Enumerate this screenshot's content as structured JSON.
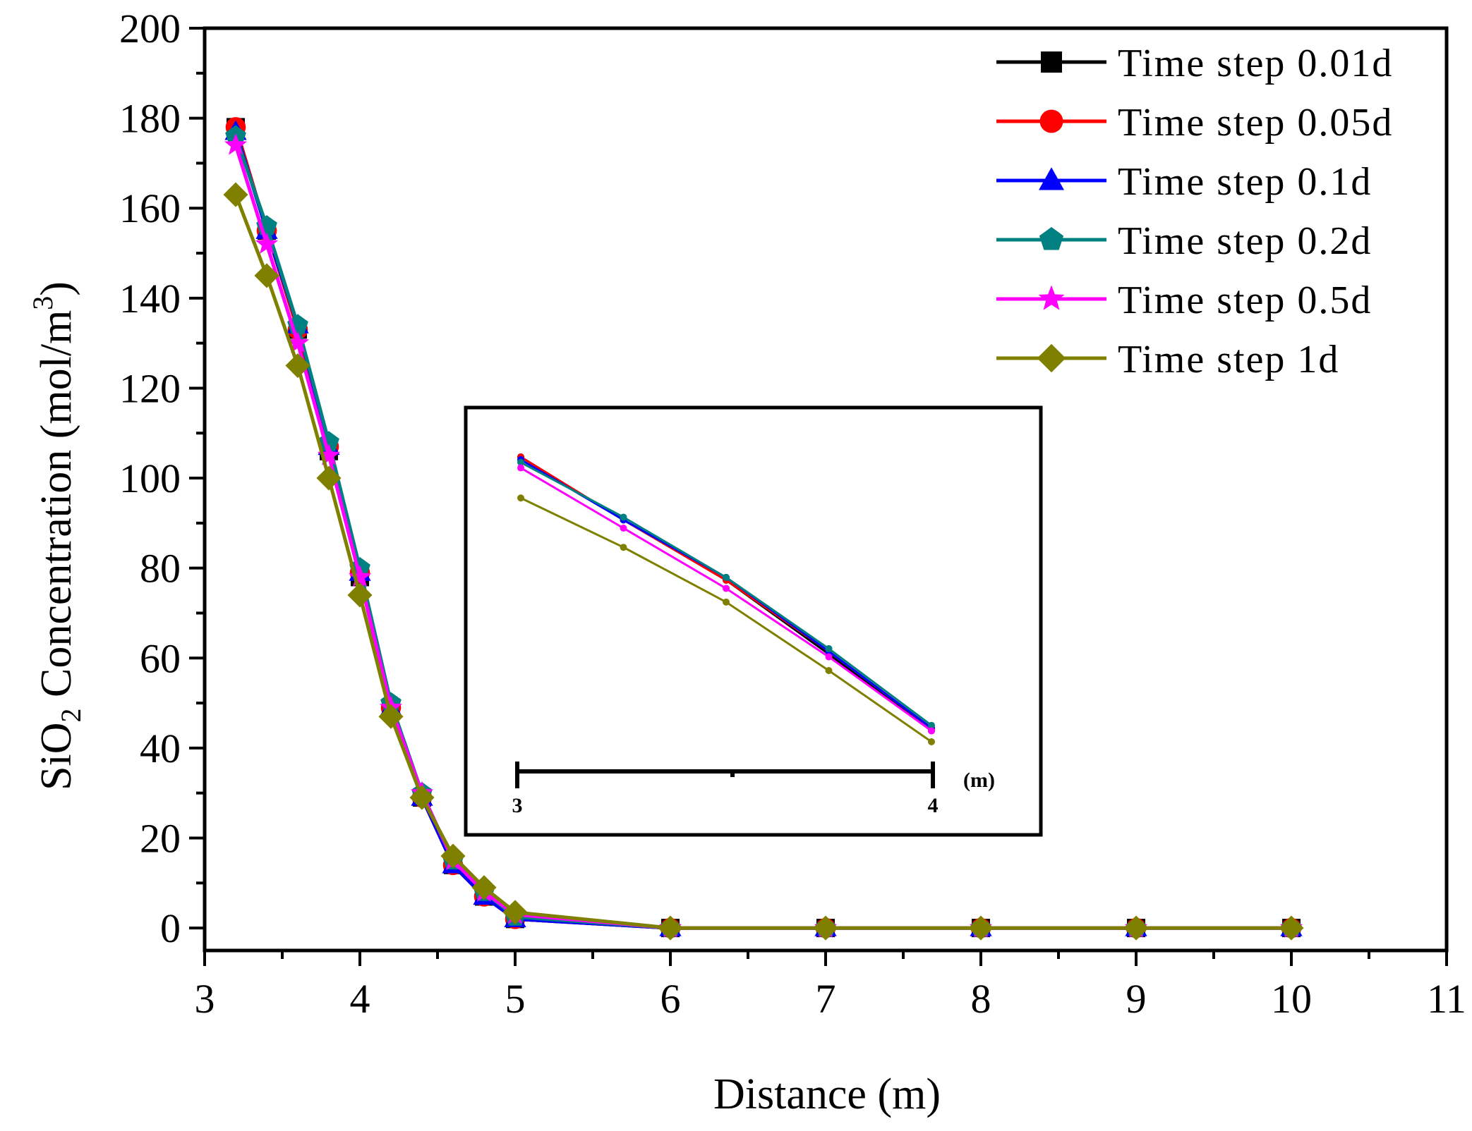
{
  "chart_data": [
    {
      "id": "main",
      "type": "line",
      "xlabel": "Distance (m)",
      "ylabel_main": "SiO",
      "ylabel_sub": "2",
      "ylabel_rest": " Concentration (mol/m",
      "ylabel_sup": "3",
      "ylabel_close": ")",
      "xlim": [
        3,
        11
      ],
      "ylim": [
        -5,
        200
      ],
      "xticks": [
        3,
        4,
        5,
        6,
        7,
        8,
        9,
        10,
        11
      ],
      "yticks": [
        0,
        20,
        40,
        60,
        80,
        100,
        120,
        140,
        160,
        180,
        200
      ],
      "x": [
        3.2,
        3.4,
        3.6,
        3.8,
        4.0,
        4.2,
        4.4,
        4.6,
        4.8,
        5.0,
        6.0,
        7.0,
        8.0,
        9.0,
        10.0
      ],
      "series": [
        {
          "name": "Time step 0.01d",
          "color": "#000000",
          "marker": "square",
          "values": [
            178,
            155,
            133,
            106,
            78,
            49,
            29,
            14,
            7,
            2,
            0,
            0,
            0,
            0,
            0
          ]
        },
        {
          "name": "Time step 0.05d",
          "color": "#ff0000",
          "marker": "circle",
          "values": [
            178,
            155,
            133,
            107,
            79,
            49,
            29,
            14,
            7,
            2,
            0,
            0,
            0,
            0,
            0
          ]
        },
        {
          "name": "Time step 0.1d",
          "color": "#0000ff",
          "marker": "triangle",
          "values": [
            177,
            155,
            134,
            107,
            79,
            49,
            29,
            14,
            7,
            2,
            0,
            0,
            0,
            0,
            0
          ]
        },
        {
          "name": "Time step 0.2d",
          "color": "#008080",
          "marker": "pentagon",
          "values": [
            176,
            156,
            134,
            108,
            80,
            50,
            30,
            15,
            8,
            2.5,
            0,
            0,
            0,
            0,
            0
          ]
        },
        {
          "name": "Time step 0.5d",
          "color": "#ff00ff",
          "marker": "star",
          "values": [
            174,
            152,
            130,
            105,
            78,
            49,
            30,
            15,
            8,
            3,
            0,
            0,
            0,
            0,
            0
          ]
        },
        {
          "name": "Time step 1d",
          "color": "#808000",
          "marker": "diamond",
          "values": [
            163,
            145,
            125,
            100,
            74,
            47,
            29,
            16,
            9,
            3.5,
            0,
            0,
            0,
            0,
            0
          ]
        }
      ],
      "legend": "top-right"
    },
    {
      "id": "inset",
      "type": "line",
      "scale_label": "(m)",
      "scale_start": "3",
      "scale_end": "4",
      "xlim": [
        3.0,
        4.0
      ],
      "ylim": [
        0,
        200
      ],
      "x": [
        3.0,
        3.25,
        3.5,
        3.75,
        4.0
      ],
      "series": [
        {
          "name": "Time step 0.01d",
          "color": "#000000",
          "values": [
            178,
            155,
            133,
            106,
            78
          ]
        },
        {
          "name": "Time step 0.05d",
          "color": "#ff0000",
          "values": [
            178,
            155,
            133,
            107,
            79
          ]
        },
        {
          "name": "Time step 0.1d",
          "color": "#0000ff",
          "values": [
            177,
            155,
            134,
            107,
            79
          ]
        },
        {
          "name": "Time step 0.2d",
          "color": "#008080",
          "values": [
            176,
            156,
            134,
            108,
            80
          ]
        },
        {
          "name": "Time step 0.5d",
          "color": "#ff00ff",
          "values": [
            174,
            152,
            130,
            105,
            78
          ]
        },
        {
          "name": "Time step 1d",
          "color": "#808000",
          "values": [
            163,
            145,
            125,
            100,
            74
          ]
        }
      ]
    }
  ]
}
